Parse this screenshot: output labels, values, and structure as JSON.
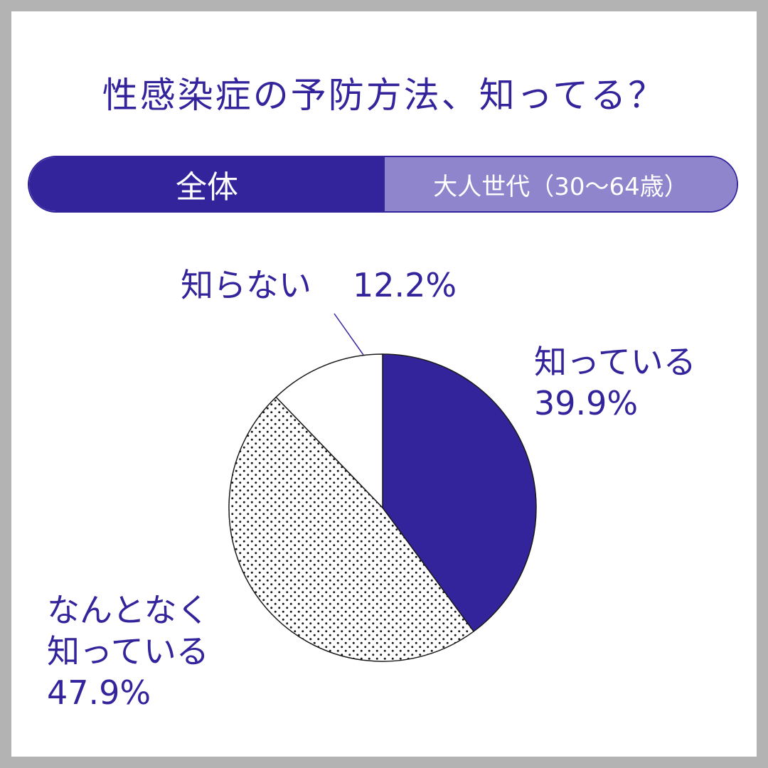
{
  "title": "性感染症の予防方法、知ってる？",
  "tabs": [
    {
      "label": "全体",
      "active": true
    },
    {
      "label": "大人世代（30～64歳）",
      "active": false
    }
  ],
  "colors": {
    "accent": "#33249c",
    "accent_light": "#8f85cc",
    "frame": "#b3b3b3",
    "background": "#ffffff"
  },
  "chart_data": {
    "type": "pie",
    "title": "",
    "slices": [
      {
        "label": "知っている",
        "value": 39.9,
        "value_label": "39.9%",
        "fill": "solid-accent"
      },
      {
        "label": "なんとなく知っている",
        "label_lines": [
          "なんとなく",
          "知っている"
        ],
        "value": 47.9,
        "value_label": "47.9%",
        "fill": "dotted"
      },
      {
        "label": "知らない",
        "value": 12.2,
        "value_label": "12.2%",
        "fill": "white"
      }
    ],
    "start": "12 o'clock",
    "direction": "clockwise"
  }
}
